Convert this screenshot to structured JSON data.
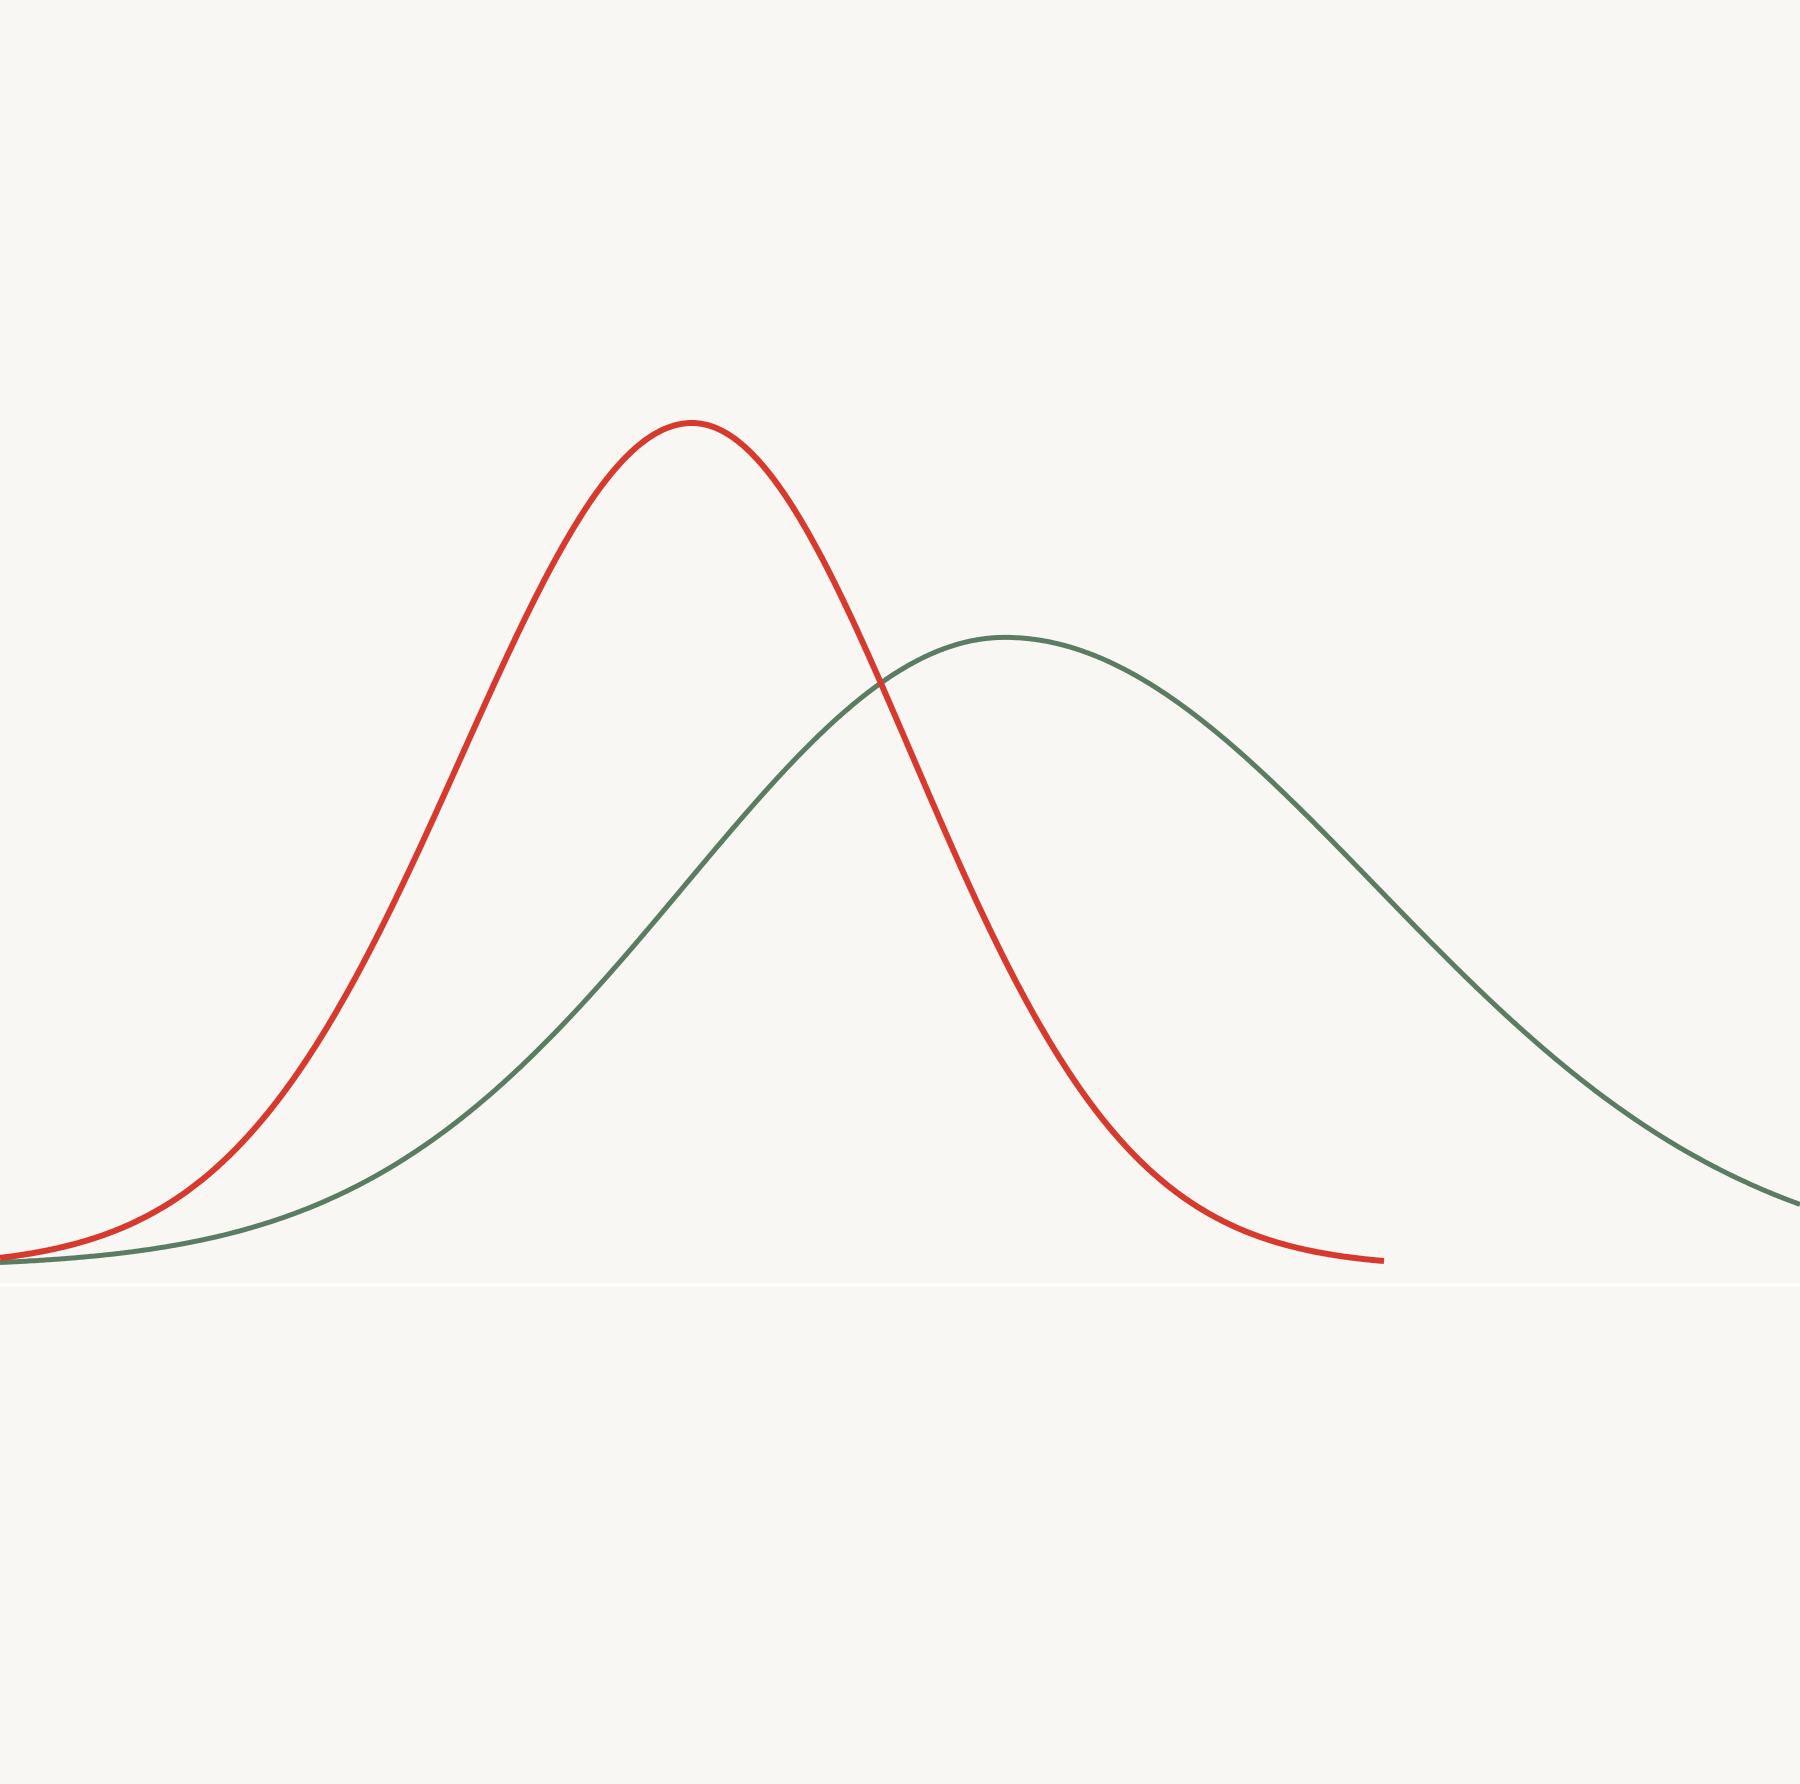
{
  "chart_data": {
    "type": "line",
    "title": "",
    "xlabel": "",
    "ylabel": "",
    "grid": false,
    "legend": "none",
    "xlim": [
      0,
      1800
    ],
    "ylim": [
      0,
      1.0
    ],
    "baseline_y": 0,
    "colors": {
      "background": "#f8f7f3",
      "baseline": "#ffffff"
    },
    "series": [
      {
        "id": "red-curve",
        "color": "#d63a2f",
        "x_start": 0,
        "x_end": 1384,
        "peak_x": 692,
        "peak_value": 1.0,
        "sigma_left": 230,
        "sigma_right": 220
      },
      {
        "id": "green-curve",
        "color": "#5b7c62",
        "x_start": 0,
        "x_end": 1800,
        "peak_x": 1005,
        "peak_value": 0.746,
        "sigma_left": 320,
        "sigma_right": 370
      }
    ]
  }
}
